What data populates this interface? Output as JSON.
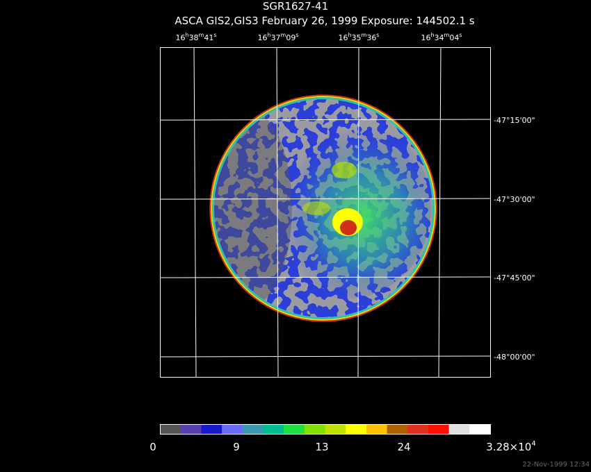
{
  "title": "SGR1627-41",
  "subtitle": "ASCA GIS2,GIS3 February 26, 1999 Exposure: 144502.1 s",
  "ra_labels": [
    [
      "16",
      "h",
      "38",
      "m",
      "41",
      "s"
    ],
    [
      "16",
      "h",
      "37",
      "m",
      "09",
      "s"
    ],
    [
      "16",
      "h",
      "35",
      "m",
      "36",
      "s"
    ],
    [
      "16",
      "h",
      "34",
      "m",
      "04",
      "s"
    ]
  ],
  "dec_labels": [
    "-47°15'00\"",
    "-47°30'00\"",
    "-47°45'00\"",
    "-48°00'00\""
  ],
  "colorbar": {
    "colors": [
      "#555555",
      "#5a3fb0",
      "#1a1acd",
      "#6a6aff",
      "#3a9ab0",
      "#00c090",
      "#20e040",
      "#80e000",
      "#c0e000",
      "#ffff00",
      "#ffc000",
      "#b06000",
      "#e03020",
      "#ff1000",
      "#e0e0e0",
      "#ffffff"
    ],
    "labels": [
      "0",
      "9",
      "13",
      "24"
    ],
    "max_label": [
      "3.28×10",
      "4"
    ]
  },
  "timestamp": "22-Nov-1999 12:34"
}
